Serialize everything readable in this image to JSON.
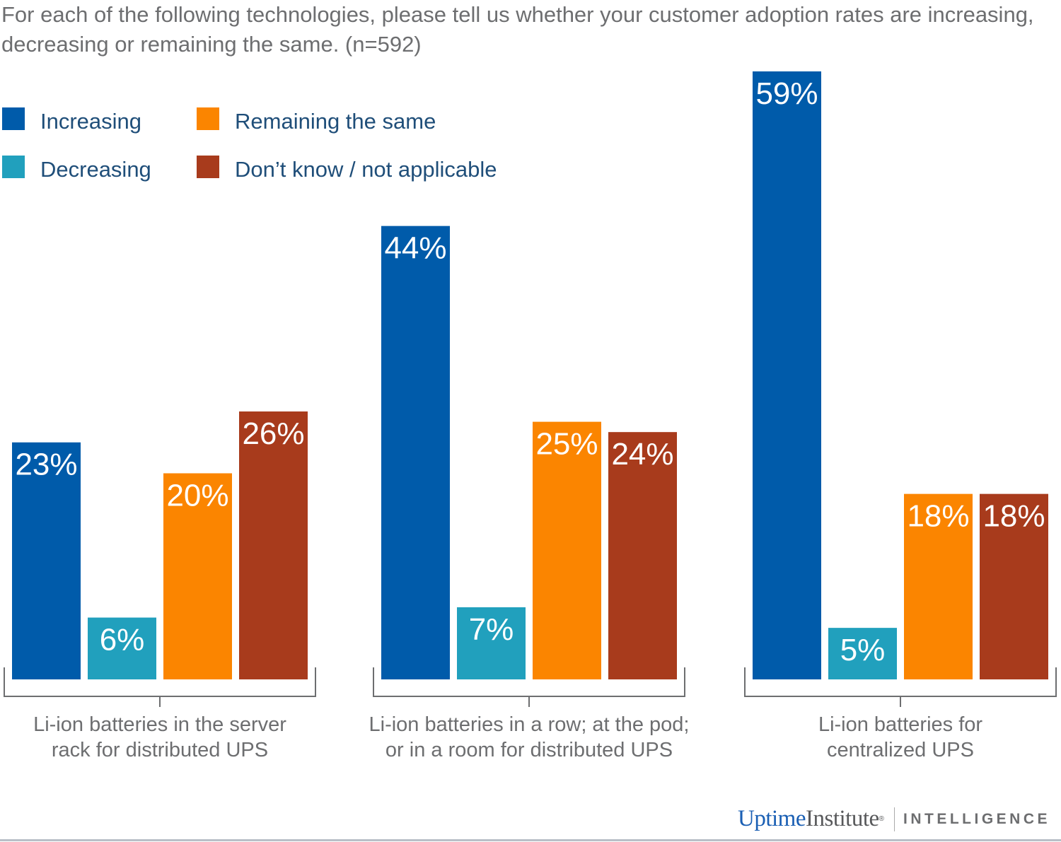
{
  "chart_data": {
    "type": "bar",
    "title": "For each of the following technologies, please tell us whether your customer adoption rates are increasing, decreasing or remaining the same. (n=592)",
    "categories": [
      [
        "Li-ion batteries in the server",
        "rack for distributed UPS"
      ],
      [
        "Li-ion batteries in a row; at the pod;",
        "or in a room for distributed UPS"
      ],
      [
        "Li-ion batteries for",
        "centralized UPS"
      ]
    ],
    "series": [
      {
        "name": "Increasing",
        "color": "#005baa",
        "values": [
          23,
          44,
          59
        ]
      },
      {
        "name": "Decreasing",
        "color": "#21a0bd",
        "values": [
          6,
          7,
          5
        ]
      },
      {
        "name": "Remaining the same",
        "color": "#fb8500",
        "values": [
          20,
          25,
          18
        ]
      },
      {
        "name": "Don’t know / not applicable",
        "color": "#a83b1c",
        "values": [
          26,
          24,
          18
        ]
      }
    ],
    "value_suffix": "%",
    "ylim": [
      0,
      60
    ],
    "grid": false,
    "legend": "top-left"
  },
  "branding": {
    "logo_text_1": "Uptime",
    "logo_text_2": "Institute",
    "logo_mark": "®",
    "logo_suffix": "INTELLIGENCE"
  }
}
